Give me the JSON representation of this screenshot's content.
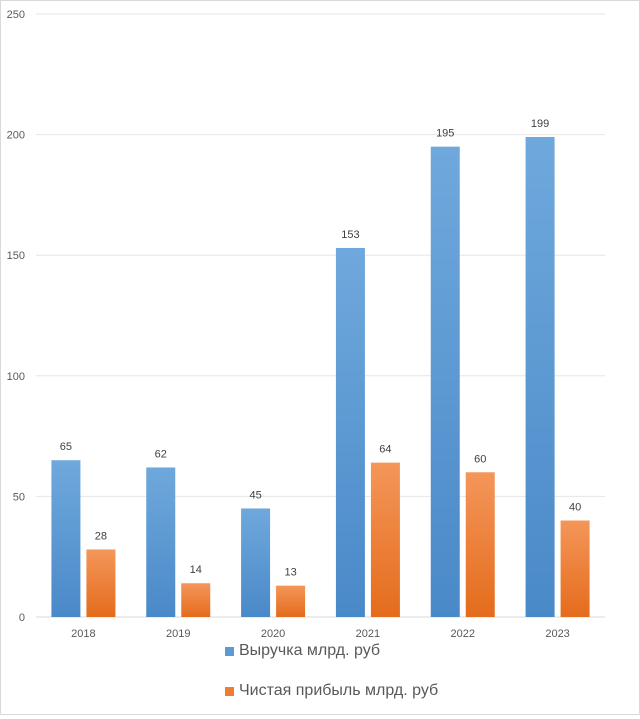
{
  "chart_data": {
    "type": "bar",
    "categories": [
      "2018",
      "2019",
      "2020",
      "2021",
      "2022",
      "2023"
    ],
    "series": [
      {
        "name": "Выручка млрд. руб",
        "values": [
          65,
          62,
          45,
          153,
          195,
          199
        ],
        "color": "#5b9bd5"
      },
      {
        "name": "Чистая прибыль млрд. руб",
        "values": [
          28,
          14,
          13,
          64,
          60,
          40
        ],
        "color": "#ed7d31"
      }
    ],
    "ylim": [
      0,
      250
    ],
    "yticks": [
      0,
      50,
      100,
      150,
      200,
      250
    ],
    "grid": true,
    "data_labels": true,
    "legend": "bottom",
    "title": "",
    "xlabel": "",
    "ylabel": ""
  }
}
